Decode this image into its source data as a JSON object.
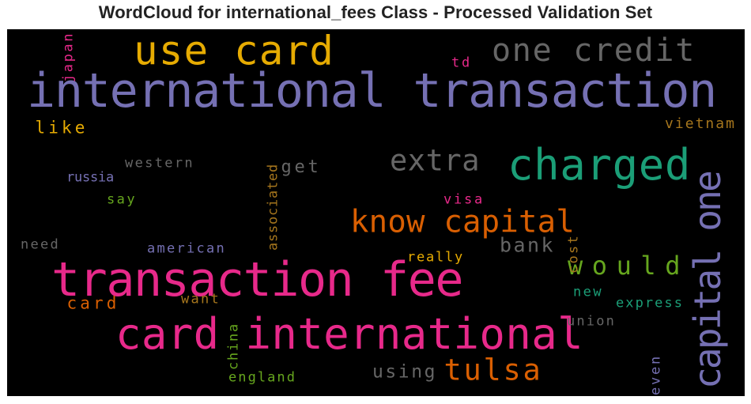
{
  "chart_data": {
    "type": "wordcloud",
    "title": "WordCloud for international_fees Class - Processed Validation Set",
    "background": "#000000",
    "words": [
      {
        "text": "international transaction",
        "color": "#7570b3"
      },
      {
        "text": "transaction fee",
        "color": "#e7298a"
      },
      {
        "text": "card international",
        "color": "#e7298a"
      },
      {
        "text": "charged",
        "color": "#1b9e77"
      },
      {
        "text": "use card",
        "color": "#e6ab02"
      },
      {
        "text": "capital one",
        "color": "#7570b3"
      },
      {
        "text": "one credit",
        "color": "#666666"
      },
      {
        "text": "know capital",
        "color": "#d95f02"
      },
      {
        "text": "tulsa",
        "color": "#d95f02"
      },
      {
        "text": "extra",
        "color": "#666666"
      },
      {
        "text": "would",
        "color": "#66a61e"
      },
      {
        "text": "bank",
        "color": "#666666"
      },
      {
        "text": "using",
        "color": "#666666"
      },
      {
        "text": "card",
        "color": "#d95f02"
      },
      {
        "text": "like",
        "color": "#e6ab02"
      },
      {
        "text": "get",
        "color": "#666666"
      },
      {
        "text": "vietnam",
        "color": "#a6761d"
      },
      {
        "text": "western",
        "color": "#666666"
      },
      {
        "text": "russia",
        "color": "#7570b3"
      },
      {
        "text": "say",
        "color": "#66a61e"
      },
      {
        "text": "associated",
        "color": "#a6761d"
      },
      {
        "text": "visa",
        "color": "#e7298a"
      },
      {
        "text": "need",
        "color": "#666666"
      },
      {
        "text": "american",
        "color": "#7570b3"
      },
      {
        "text": "really",
        "color": "#e6ab02"
      },
      {
        "text": "cost",
        "color": "#a6761d"
      },
      {
        "text": "want",
        "color": "#a6761d"
      },
      {
        "text": "new",
        "color": "#1b9e77"
      },
      {
        "text": "express",
        "color": "#1b9e77"
      },
      {
        "text": "union",
        "color": "#666666"
      },
      {
        "text": "china",
        "color": "#66a61e"
      },
      {
        "text": "england",
        "color": "#66a61e"
      },
      {
        "text": "even",
        "color": "#7570b3"
      },
      {
        "text": "japan",
        "color": "#e7298a"
      },
      {
        "text": "td",
        "color": "#e7298a"
      }
    ]
  }
}
